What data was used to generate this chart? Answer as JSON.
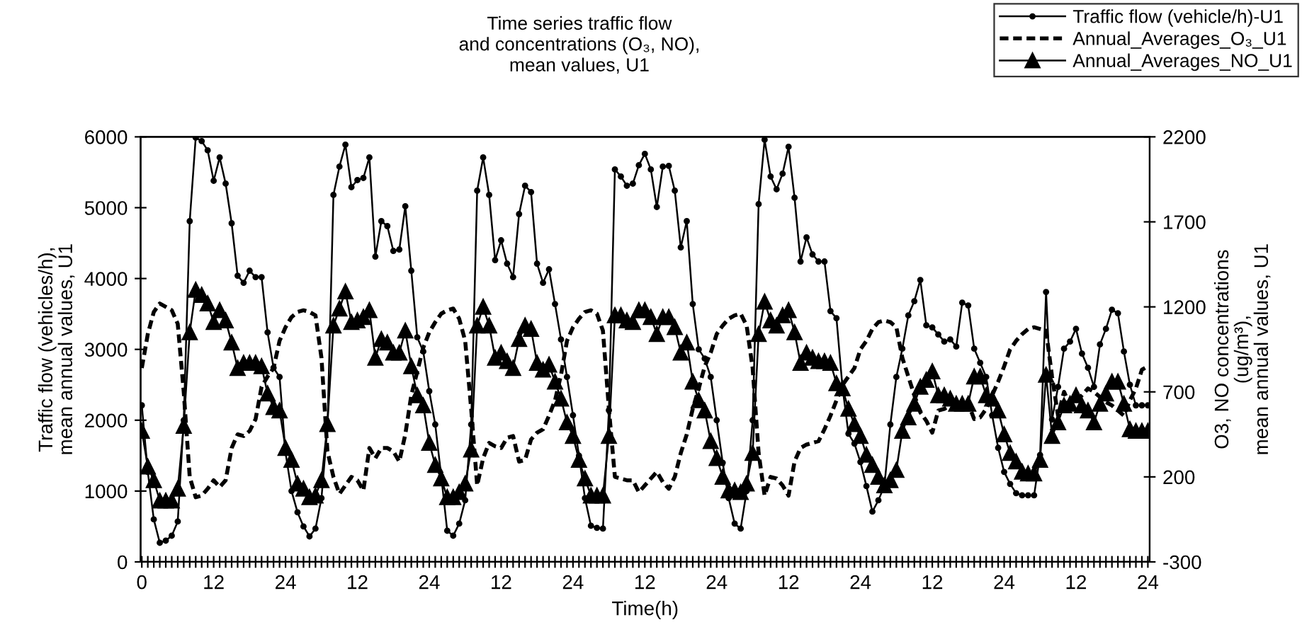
{
  "chart_data": {
    "type": "line",
    "title": "Time series traffic flow\nand concentrations (O₃, NO),\nmean values, U1",
    "xlabel": "Time(h)",
    "ylabel": "Traffic flow (vehicles/h),\nmean annual values, U1",
    "y2label": "O3, NO concentrations\n(ug/m³),\nmean annual values, U1",
    "categories": [
      "0",
      null,
      null,
      null,
      null,
      null,
      null,
      null,
      null,
      null,
      null,
      null,
      "12",
      null,
      null,
      null,
      null,
      null,
      null,
      null,
      null,
      null,
      null,
      null,
      "24",
      null,
      null,
      null,
      null,
      null,
      null,
      null,
      null,
      null,
      null,
      null,
      "12",
      null,
      null,
      null,
      null,
      null,
      null,
      null,
      null,
      null,
      null,
      null,
      "24",
      null,
      null,
      null,
      null,
      null,
      null,
      null,
      null,
      null,
      null,
      null,
      "12",
      null,
      null,
      null,
      null,
      null,
      null,
      null,
      null,
      null,
      null,
      null,
      "24",
      null,
      null,
      null,
      null,
      null,
      null,
      null,
      null,
      null,
      null,
      null,
      "12",
      null,
      null,
      null,
      null,
      null,
      null,
      null,
      null,
      null,
      null,
      null,
      "24",
      null,
      null,
      null,
      null,
      null,
      null,
      null,
      null,
      null,
      null,
      null,
      "12",
      null,
      null,
      null,
      null,
      null,
      null,
      null,
      null,
      null,
      null,
      null,
      "24",
      null,
      null,
      null,
      null,
      null,
      null,
      null,
      null,
      null,
      null,
      null,
      "12",
      null,
      null,
      null,
      null,
      null,
      null,
      null,
      null,
      null,
      null,
      null,
      "24",
      null,
      null,
      null,
      null,
      null,
      null,
      null,
      null,
      null,
      null,
      null,
      "12",
      null,
      null,
      null,
      null,
      null,
      null,
      null,
      null,
      null,
      null,
      null,
      "24"
    ],
    "series": [
      {
        "name": "Traffic flow (vehicle/h)-U1",
        "color": "#000000",
        "marker": "circle",
        "line_style": "solid",
        "axis": "y",
        "values": [
          2210,
          1270,
          600,
          270,
          300,
          370,
          570,
          2000,
          4810,
          5990,
          5940,
          5810,
          5380,
          5710,
          5340,
          4780,
          4040,
          3940,
          4110,
          4020,
          4020,
          3240,
          2740,
          2610,
          1540,
          1000,
          700,
          500,
          360,
          470,
          900,
          1900,
          5180,
          5580,
          5890,
          5290,
          5390,
          5420,
          5710,
          4310,
          4810,
          4740,
          4390,
          4410,
          5020,
          4110,
          3170,
          2970,
          2410,
          1940,
          1210,
          440,
          370,
          540,
          870,
          1940,
          5240,
          5710,
          5180,
          4260,
          4540,
          4210,
          4020,
          4910,
          5310,
          5220,
          4210,
          3940,
          4130,
          3640,
          3140,
          2610,
          2070,
          1500,
          900,
          510,
          480,
          470,
          2140,
          5540,
          5440,
          5310,
          5340,
          5600,
          5760,
          5540,
          5010,
          5580,
          5590,
          5240,
          4440,
          4810,
          3640,
          3000,
          2870,
          2610,
          2000,
          1400,
          900,
          540,
          470,
          1000,
          2000,
          5050,
          5960,
          5440,
          5260,
          5480,
          5860,
          5140,
          4240,
          4580,
          4340,
          4240,
          4240,
          3540,
          3440,
          2470,
          1810,
          1670,
          1410,
          1070,
          710,
          870,
          1070,
          1940,
          2610,
          3010,
          3480,
          3680,
          3980,
          3340,
          3310,
          3210,
          3110,
          3140,
          3040,
          3660,
          3620,
          3010,
          2810,
          2610,
          2070,
          1610,
          1270,
          1100,
          970,
          940,
          940,
          940,
          1510,
          3810,
          2010,
          2470,
          3010,
          3110,
          3290,
          2940,
          2740,
          2470,
          3070,
          3290,
          3560,
          3510,
          2970,
          2500,
          2210,
          2210,
          2210
        ]
      },
      {
        "name": "Annual_Averages_O₃_U1",
        "color": "#000000",
        "marker": "none",
        "line_style": "dashed",
        "axis": "y2",
        "values": [
          840,
          1040,
          1170,
          1220,
          1200,
          1180,
          1100,
          700,
          200,
          80,
          90,
          130,
          180,
          140,
          180,
          370,
          450,
          440,
          470,
          540,
          730,
          790,
          840,
          1000,
          1080,
          1140,
          1170,
          1180,
          1170,
          1150,
          900,
          350,
          200,
          100,
          150,
          200,
          180,
          120,
          370,
          310,
          370,
          370,
          350,
          290,
          450,
          680,
          820,
          960,
          1050,
          1110,
          1160,
          1180,
          1190,
          1130,
          1000,
          600,
          150,
          310,
          400,
          380,
          370,
          430,
          440,
          290,
          300,
          420,
          460,
          480,
          560,
          650,
          800,
          1000,
          1080,
          1130,
          1170,
          1180,
          1160,
          1060,
          600,
          200,
          190,
          180,
          180,
          110,
          150,
          190,
          230,
          170,
          130,
          200,
          340,
          450,
          600,
          720,
          850,
          930,
          1040,
          1090,
          1130,
          1150,
          1160,
          1090,
          840,
          340,
          90,
          200,
          190,
          150,
          90,
          290,
          370,
          390,
          400,
          410,
          480,
          560,
          650,
          740,
          790,
          840,
          950,
          1000,
          1070,
          1110,
          1120,
          1110,
          1080,
          900,
          790,
          680,
          580,
          530,
          460,
          590,
          600,
          620,
          630,
          630,
          630,
          540,
          550,
          600,
          680,
          760,
          850,
          950,
          1000,
          1040,
          1070,
          1080,
          1070,
          1060,
          790,
          560,
          700,
          620,
          640,
          680,
          720,
          700,
          670,
          640,
          620,
          590,
          560,
          650,
          720,
          830,
          850
        ]
      },
      {
        "name": "Annual_Averages_NO_U1",
        "color": "#000000",
        "marker": "triangle",
        "line_style": "solid",
        "axis": "y2",
        "values": [
          470,
          260,
          180,
          60,
          60,
          60,
          130,
          500,
          1050,
          1300,
          1270,
          1220,
          1110,
          1180,
          1120,
          990,
          840,
          870,
          870,
          870,
          850,
          690,
          610,
          590,
          370,
          300,
          160,
          130,
          80,
          90,
          180,
          510,
          1090,
          1190,
          1290,
          1110,
          1120,
          1140,
          1180,
          900,
          1010,
          990,
          930,
          930,
          1060,
          850,
          680,
          620,
          400,
          270,
          190,
          80,
          80,
          110,
          160,
          360,
          1090,
          1200,
          1090,
          900,
          930,
          880,
          840,
          1010,
          1090,
          1070,
          870,
          830,
          860,
          760,
          660,
          520,
          440,
          300,
          190,
          90,
          90,
          90,
          440,
          1150,
          1150,
          1120,
          1110,
          1180,
          1180,
          1140,
          1040,
          1140,
          1140,
          1080,
          930,
          990,
          760,
          650,
          590,
          410,
          310,
          200,
          120,
          120,
          110,
          160,
          340,
          1040,
          1230,
          1120,
          1090,
          1150,
          1180,
          1050,
          870,
          930,
          900,
          880,
          880,
          870,
          750,
          720,
          600,
          510,
          440,
          330,
          270,
          200,
          150,
          180,
          240,
          470,
          550,
          630,
          730,
          770,
          820,
          680,
          680,
          660,
          630,
          630,
          630,
          790,
          790,
          680,
          660,
          590,
          450,
          340,
          290,
          230,
          220,
          220,
          300,
          800,
          440,
          520,
          620,
          630,
          680,
          620,
          590,
          520,
          630,
          690,
          760,
          760,
          630,
          480,
          470,
          470,
          470
        ]
      }
    ],
    "ylim": [
      0,
      6000
    ],
    "yticks": [
      0,
      1000,
      2000,
      3000,
      4000,
      5000,
      6000
    ],
    "y2lim": [
      -300,
      2200
    ],
    "y2ticks": [
      -300,
      200,
      700,
      1200,
      1700,
      2200
    ],
    "grid": false,
    "legend": "top right"
  }
}
